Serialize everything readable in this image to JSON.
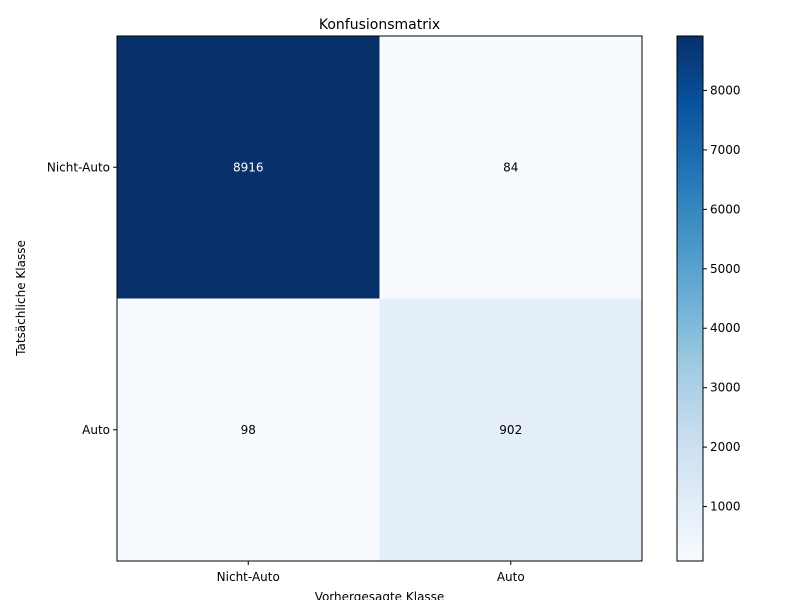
{
  "chart_data": {
    "type": "heatmap",
    "title": "Konfusionsmatrix",
    "xlabel": "Vorhergesagte Klasse",
    "ylabel": "Tatsächliche Klasse",
    "x_categories": [
      "Nicht-Auto",
      "Auto"
    ],
    "y_categories": [
      "Nicht-Auto",
      "Auto"
    ],
    "matrix": [
      [
        8916,
        84
      ],
      [
        98,
        902
      ]
    ],
    "colorbar": {
      "min": 84,
      "max": 8916,
      "ticks": [
        1000,
        2000,
        3000,
        4000,
        5000,
        6000,
        7000,
        8000
      ]
    },
    "colormap": "Blues",
    "colormap_colors": [
      "#f7fbff",
      "#deebf7",
      "#c6dbef",
      "#9ecae1",
      "#6baed6",
      "#4292c6",
      "#2171b5",
      "#08519c",
      "#08306b"
    ],
    "label_color_dark": "#000000",
    "label_color_light": "#ffffff",
    "grid": false
  }
}
